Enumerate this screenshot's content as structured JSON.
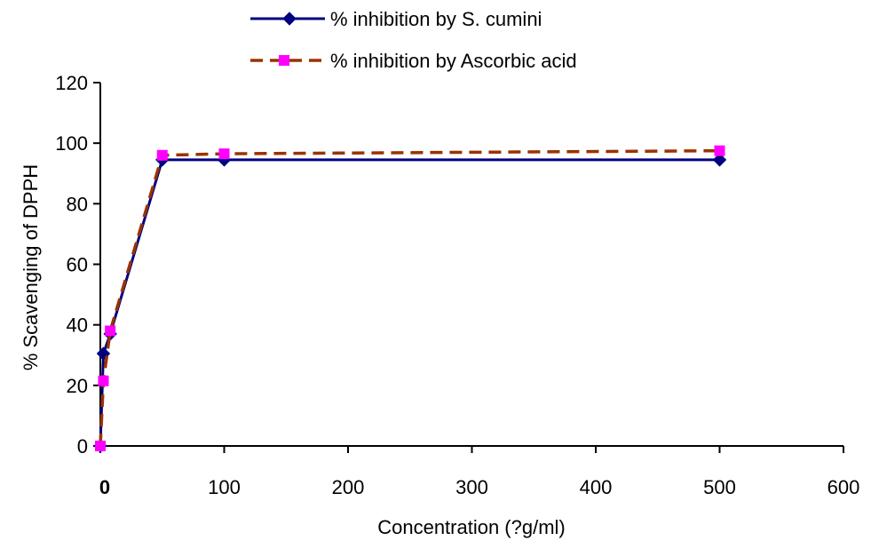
{
  "chart_data": {
    "type": "line",
    "xlabel": "Concentration (?g/ml)",
    "ylabel": "% Scavenging of DPPH",
    "xlim": [
      0,
      600
    ],
    "ylim": [
      0,
      120
    ],
    "xticks": [
      0,
      100,
      200,
      300,
      400,
      500,
      600
    ],
    "xtick_labels": [
      "0",
      "100",
      "200",
      "300",
      "400",
      "500",
      "600"
    ],
    "yticks": [
      0,
      20,
      40,
      60,
      80,
      100,
      120
    ],
    "ytick_labels": [
      "0",
      "20",
      "40",
      "60",
      "80",
      "100",
      "120"
    ],
    "grid": false,
    "legend_position": "top-center",
    "series": [
      {
        "name": "% inhibition by S. cumini",
        "color": "#000080",
        "line_style": "solid",
        "marker": "diamond",
        "x": [
          0,
          2.5,
          8,
          50,
          100,
          500
        ],
        "y": [
          0,
          30.5,
          37,
          94.5,
          94.5,
          94.5
        ]
      },
      {
        "name": "% inhibition by Ascorbic acid",
        "color": "#993300",
        "marker_color": "#FF00FF",
        "line_style": "dashed",
        "marker": "square",
        "x": [
          0,
          2.5,
          8,
          50,
          100,
          500
        ],
        "y": [
          0,
          21.5,
          38,
          96,
          96.5,
          97.5
        ]
      }
    ]
  }
}
